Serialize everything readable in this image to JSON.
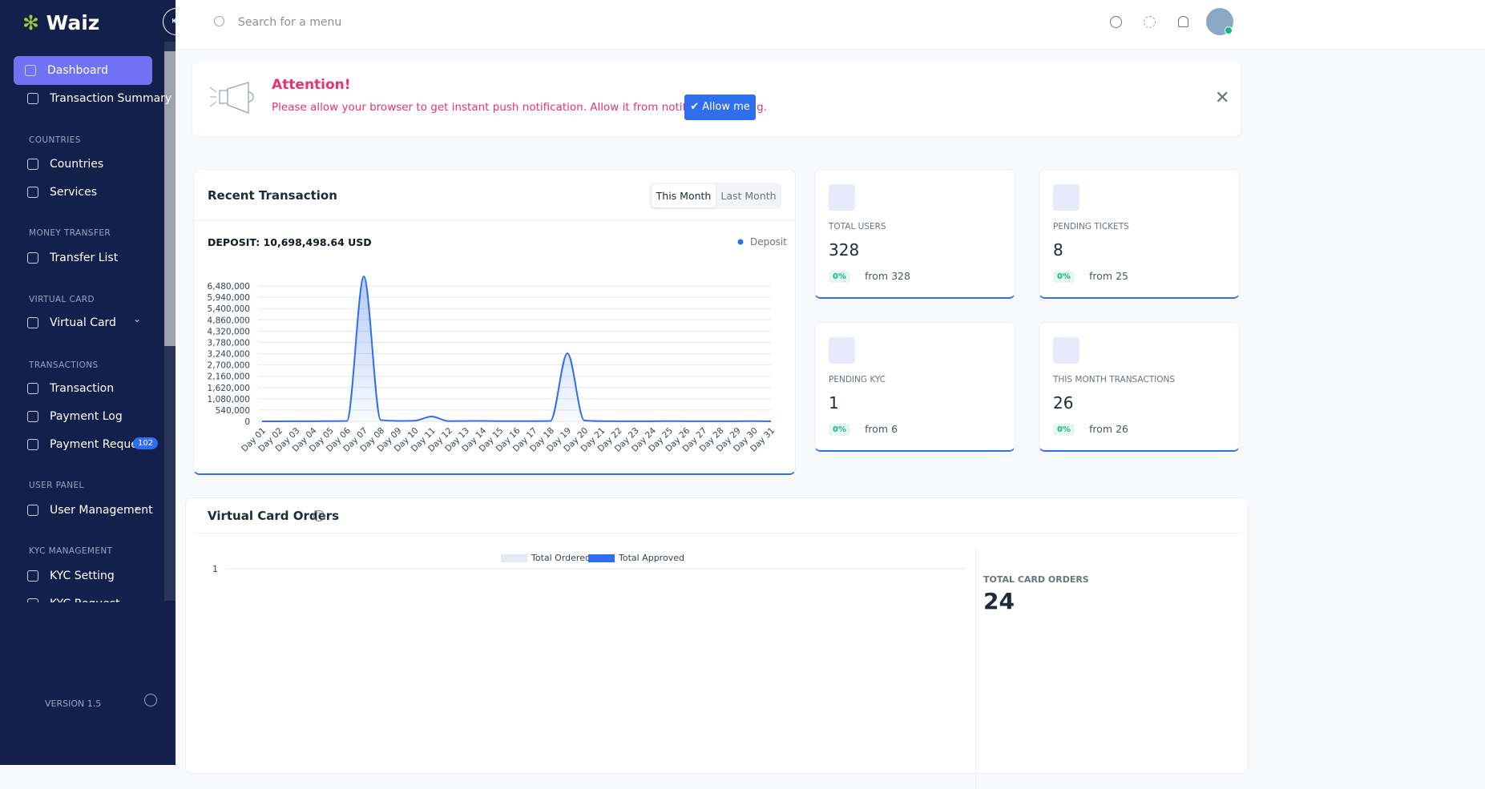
{
  "brand": {
    "logo": "Waiz",
    "version": "VERSION 1.5"
  },
  "header": {
    "search_placeholder": "Search for a menu"
  },
  "sidebar": {
    "top": [
      "Dashboard",
      "Transaction Summary"
    ],
    "sections": [
      {
        "title": "COUNTRIES",
        "items": [
          "Countries",
          "Services"
        ]
      },
      {
        "title": "MONEY TRANSFER",
        "items": [
          "Transfer List"
        ]
      },
      {
        "title": "VIRTUAL CARD",
        "items": [
          "Virtual Card"
        ]
      },
      {
        "title": "TRANSACTIONS",
        "items": [
          "Transaction",
          "Payment Log",
          "Payment Request"
        ]
      },
      {
        "title": "USER PANEL",
        "items": [
          "User Management"
        ]
      },
      {
        "title": "KYC MANAGEMENT",
        "items": [
          "KYC Setting",
          "KYC Request"
        ]
      }
    ],
    "payment_request_badge": "102"
  },
  "notice": {
    "title": "Attention!",
    "message": "Please allow your browser to get instant push notification. Allow it from notification setting.",
    "button": "Allow me"
  },
  "recent_transaction": {
    "title": "Recent Transaction",
    "tabs": [
      "This Month",
      "Last Month"
    ]
  },
  "stats": [
    {
      "label": "TOTAL USERS",
      "value": "328",
      "change": "0%",
      "from": "from 328"
    },
    {
      "label": "PENDING TICKETS",
      "value": "8",
      "change": "0%",
      "from": "from 25"
    },
    {
      "label": "PENDING KYC",
      "value": "1",
      "change": "0%",
      "from": "from 6"
    },
    {
      "label": "THIS MONTH TRANSACTIONS",
      "value": "26",
      "change": "0%",
      "from": "from 26"
    }
  ],
  "virtual_card_orders": {
    "title": "Virtual Card Orders",
    "total_label": "TOTAL CARD ORDERS",
    "total_value": "24"
  },
  "chart_data": [
    {
      "type": "line",
      "title": "DEPOSIT: 10,698,498.64 USD",
      "categories": [
        "Day 01",
        "Day 02",
        "Day 03",
        "Day 04",
        "Day 05",
        "Day 06",
        "Day 07",
        "Day 08",
        "Day 09",
        "Day 10",
        "Day 11",
        "Day 12",
        "Day 13",
        "Day 14",
        "Day 15",
        "Day 16",
        "Day 17",
        "Day 18",
        "Day 19",
        "Day 20",
        "Day 21",
        "Day 22",
        "Day 23",
        "Day 24",
        "Day 25",
        "Day 26",
        "Day 27",
        "Day 28",
        "Day 29",
        "Day 30",
        "Day 31"
      ],
      "series": [
        {
          "name": "Deposit",
          "color": "#2f6fed",
          "values": [
            0,
            0,
            5000,
            5000,
            10000,
            20000,
            6940000,
            60000,
            20000,
            30000,
            230000,
            10000,
            15000,
            20000,
            10000,
            10000,
            10000,
            15000,
            3260000,
            40000,
            10000,
            5000,
            5000,
            5000,
            10000,
            5000,
            5000,
            5000,
            5000,
            10000,
            5000
          ]
        }
      ],
      "ylim": [
        0,
        7020000
      ],
      "yticks": [
        0,
        {
          "value": 540000,
          "label": "540,000"
        },
        {
          "value": 1080000,
          "label": "1,080,000"
        },
        {
          "value": 1620000,
          "label": "1,620,000"
        },
        {
          "value": 2160000,
          "label": "2,160,000"
        },
        {
          "value": 2700000,
          "label": "2,700,000"
        },
        {
          "value": 3240000,
          "label": "3,240,000"
        },
        {
          "value": 3780000,
          "label": "3,780,000"
        },
        {
          "value": 4320000,
          "label": "4,320,000"
        },
        {
          "value": 4860000,
          "label": "4,860,000"
        },
        {
          "value": 5400000,
          "label": "5,400,000"
        },
        {
          "value": 5940000,
          "label": "5,940,000"
        },
        {
          "value": 6480000,
          "label": "6,480,000"
        }
      ],
      "grid": true,
      "legend": "top-right"
    },
    {
      "type": "bar",
      "series": [
        {
          "name": "Total Ordered",
          "color": "#e6e8f6"
        },
        {
          "name": "Total Approved",
          "color": "#2f6fed"
        }
      ],
      "yticks": [
        1
      ],
      "grid": true,
      "legend": "top"
    }
  ]
}
